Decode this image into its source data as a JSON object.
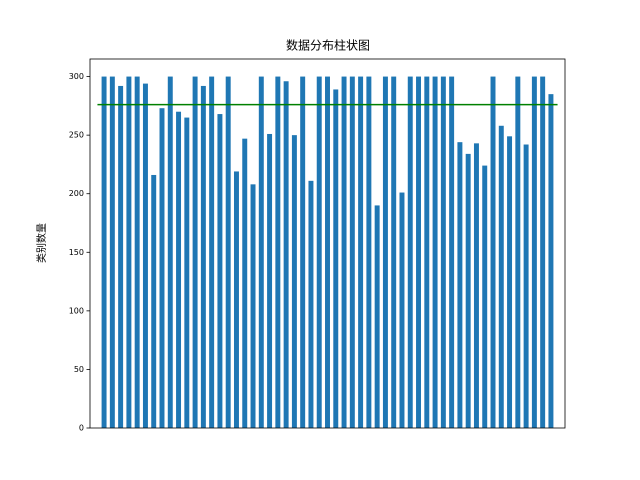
{
  "chart_data": {
    "type": "bar",
    "title": "数据分布柱状图",
    "y_label": "类别数量",
    "categories": [
      null,
      null,
      null,
      null,
      null,
      null,
      null,
      null,
      null,
      null,
      null,
      null,
      null,
      null,
      null,
      null,
      null,
      null,
      null,
      null,
      null,
      null,
      null,
      null,
      null,
      null,
      null,
      null,
      null,
      null,
      null,
      null,
      null,
      null,
      null,
      null,
      null,
      null,
      null,
      null,
      null,
      null,
      null,
      null,
      null,
      null,
      null,
      null,
      null,
      null,
      null,
      null,
      null,
      null,
      null
    ],
    "values": [
      300,
      300,
      292,
      300,
      300,
      294,
      216,
      273,
      300,
      270,
      265,
      300,
      292,
      300,
      268,
      300,
      219,
      247,
      208,
      300,
      251,
      300,
      296,
      250,
      300,
      211,
      300,
      300,
      289,
      300,
      300,
      300,
      300,
      190,
      300,
      300,
      201,
      300,
      300,
      300,
      300,
      300,
      300,
      244,
      234,
      243,
      224,
      300,
      258,
      249,
      300,
      242,
      300,
      300,
      285
    ],
    "color": "#1f77b4",
    "reference_line": {
      "value": 276,
      "color": "#008000"
    },
    "ylim": [
      0,
      315
    ],
    "yticks": [
      0,
      50,
      100,
      150,
      200,
      250,
      300
    ]
  }
}
